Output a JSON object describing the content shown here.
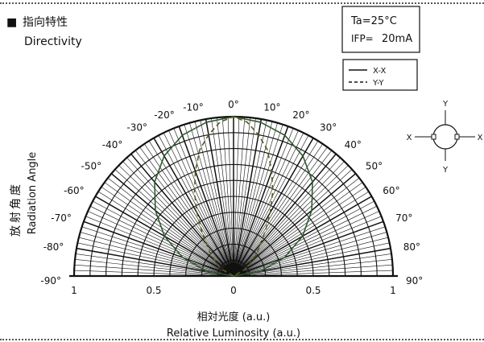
{
  "chart_data": {
    "type": "polar-directivity",
    "title_cn": "指向特性",
    "title_en": "Directivity",
    "title_bullet": "■",
    "conditions": {
      "ta": "Ta=25°C",
      "if_prefix": "IFP=",
      "if_value": "20mA"
    },
    "legend": [
      {
        "name": "X-X",
        "style": "solid",
        "color": "#2f5a2f"
      },
      {
        "name": "Y-Y",
        "style": "dashed",
        "color": "#5a5a20"
      }
    ],
    "angle_labels": {
      "left": [
        "0°",
        "-10°",
        "-20°",
        "-30°",
        "-40°",
        "-50°",
        "-60°",
        "-70°",
        "-80°",
        "-90°"
      ],
      "right": [
        "10°",
        "20°",
        "30°",
        "40°",
        "50°",
        "60°",
        "70°",
        "80°",
        "90°"
      ]
    },
    "radial_tick_labels": [
      "1",
      "0.5",
      "0",
      "0.5",
      "1"
    ],
    "ylabel_cn": "放射角度",
    "ylabel_en": "Radiation Angle",
    "xlabel_cn": "相対光度 (a.u.)",
    "xlabel_en": "Relative Luminosity (a.u.)",
    "x_axis_range": [
      0,
      1
    ],
    "angle_range_deg": [
      -90,
      90
    ],
    "series": [
      {
        "name": "X-X",
        "angles_deg": [
          -90,
          -80,
          -70,
          -60,
          -50,
          -40,
          -30,
          -20,
          -10,
          0,
          10,
          20,
          30,
          40,
          50,
          60,
          70,
          80,
          90
        ],
        "values": [
          0.0,
          0.17,
          0.34,
          0.5,
          0.64,
          0.77,
          0.87,
          0.94,
          0.98,
          1.0,
          0.98,
          0.94,
          0.87,
          0.77,
          0.64,
          0.5,
          0.34,
          0.17,
          0.0
        ]
      },
      {
        "name": "Y-Y",
        "angles_deg": [
          -90,
          -60,
          -45,
          -35,
          -30,
          -25,
          -20,
          -15,
          -10,
          -5,
          0,
          5,
          10,
          15,
          20,
          25,
          30,
          35,
          45,
          60,
          90
        ],
        "values": [
          0.0,
          0.1,
          0.21,
          0.35,
          0.46,
          0.58,
          0.7,
          0.82,
          0.9,
          0.97,
          1.0,
          0.97,
          0.9,
          0.82,
          0.7,
          0.58,
          0.46,
          0.35,
          0.21,
          0.1,
          0.0
        ]
      }
    ],
    "orientation_icon": {
      "label_top": "Y",
      "label_bottom": "Y",
      "label_left": "X",
      "label_right": "X"
    }
  }
}
